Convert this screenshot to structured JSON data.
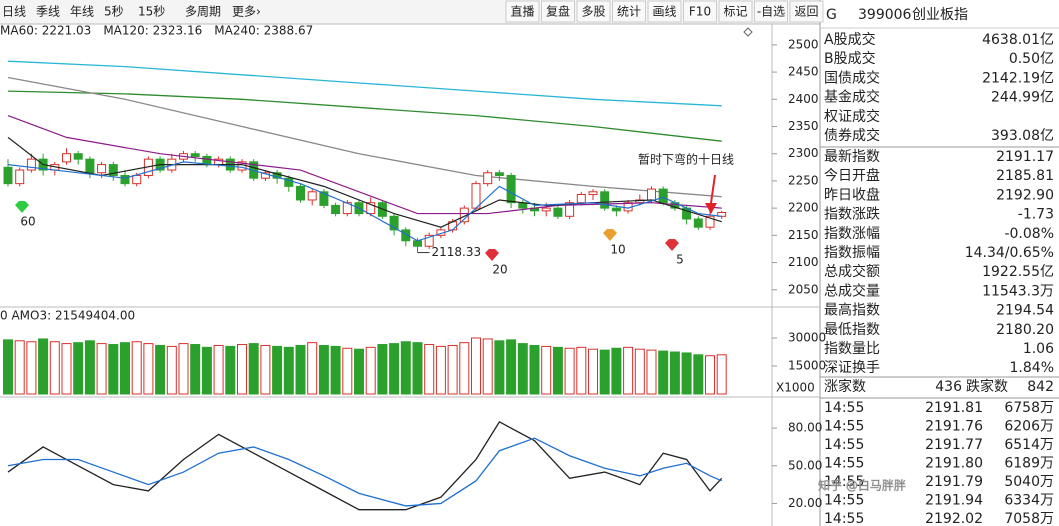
{
  "toolbar": {
    "periods": [
      "日线",
      "季线",
      "年线",
      "5秒",
      "15秒",
      "多周期",
      "更多›"
    ],
    "buttons": [
      "直播",
      "复盘",
      "多股",
      "统计",
      "画线",
      "F10",
      "标记",
      "-自选",
      "返回"
    ]
  },
  "chart_data": [
    {
      "type": "candlestick",
      "legend": [
        {
          "label": "MA60: 2221.03",
          "color": "#888888"
        },
        {
          "label": "MA120: 2323.16",
          "color": "#2e8b2e"
        },
        {
          "label": "MA240: 2388.67",
          "color": "#29b6d6"
        }
      ],
      "ylim": [
        2022,
        2531
      ],
      "yticks": [
        2050,
        2100,
        2150,
        2200,
        2250,
        2300,
        2350,
        2400,
        2450,
        2500
      ],
      "up_color": "#d9302b",
      "down_color": "#2ca02c",
      "candles": [
        [
          2275,
          2245,
          2290,
          2240
        ],
        [
          2245,
          2270,
          2275,
          2240
        ],
        [
          2270,
          2290,
          2300,
          2265
        ],
        [
          2290,
          2270,
          2300,
          2260
        ],
        [
          2270,
          2280,
          2285,
          2260
        ],
        [
          2285,
          2300,
          2310,
          2280
        ],
        [
          2300,
          2290,
          2305,
          2280
        ],
        [
          2290,
          2265,
          2295,
          2255
        ],
        [
          2265,
          2280,
          2285,
          2255
        ],
        [
          2280,
          2260,
          2285,
          2250
        ],
        [
          2260,
          2245,
          2270,
          2240
        ],
        [
          2245,
          2260,
          2265,
          2240
        ],
        [
          2260,
          2290,
          2295,
          2255
        ],
        [
          2290,
          2270,
          2295,
          2265
        ],
        [
          2270,
          2290,
          2300,
          2265
        ],
        [
          2290,
          2300,
          2305,
          2285
        ],
        [
          2300,
          2295,
          2305,
          2285
        ],
        [
          2295,
          2280,
          2300,
          2275
        ],
        [
          2280,
          2290,
          2295,
          2275
        ],
        [
          2290,
          2270,
          2295,
          2265
        ],
        [
          2270,
          2285,
          2290,
          2265
        ],
        [
          2285,
          2255,
          2290,
          2250
        ],
        [
          2255,
          2265,
          2270,
          2250
        ],
        [
          2265,
          2255,
          2270,
          2245
        ],
        [
          2255,
          2240,
          2260,
          2230
        ],
        [
          2240,
          2215,
          2245,
          2210
        ],
        [
          2215,
          2230,
          2235,
          2205
        ],
        [
          2230,
          2205,
          2235,
          2200
        ],
        [
          2205,
          2190,
          2210,
          2185
        ],
        [
          2190,
          2210,
          2215,
          2185
        ],
        [
          2210,
          2190,
          2215,
          2185
        ],
        [
          2190,
          2210,
          2220,
          2185
        ],
        [
          2210,
          2185,
          2215,
          2180
        ],
        [
          2185,
          2160,
          2190,
          2150
        ],
        [
          2160,
          2140,
          2165,
          2130
        ],
        [
          2140,
          2130,
          2145,
          2118.33
        ],
        [
          2130,
          2150,
          2155,
          2125
        ],
        [
          2150,
          2160,
          2165,
          2145
        ],
        [
          2160,
          2175,
          2180,
          2155
        ],
        [
          2175,
          2200,
          2205,
          2170
        ],
        [
          2200,
          2245,
          2250,
          2195
        ],
        [
          2245,
          2265,
          2270,
          2240
        ],
        [
          2265,
          2260,
          2270,
          2250
        ],
        [
          2260,
          2210,
          2265,
          2200
        ],
        [
          2210,
          2200,
          2215,
          2190
        ],
        [
          2200,
          2195,
          2210,
          2185
        ],
        [
          2195,
          2200,
          2210,
          2185
        ],
        [
          2200,
          2185,
          2205,
          2180
        ],
        [
          2185,
          2210,
          2215,
          2180
        ],
        [
          2210,
          2225,
          2230,
          2205
        ],
        [
          2225,
          2230,
          2235,
          2215
        ],
        [
          2230,
          2200,
          2235,
          2195
        ],
        [
          2200,
          2195,
          2205,
          2185
        ],
        [
          2195,
          2210,
          2215,
          2190
        ],
        [
          2210,
          2215,
          2225,
          2205
        ],
        [
          2215,
          2235,
          2240,
          2210
        ],
        [
          2235,
          2210,
          2240,
          2205
        ],
        [
          2210,
          2200,
          2215,
          2195
        ],
        [
          2200,
          2180,
          2205,
          2170
        ],
        [
          2180,
          2165,
          2185,
          2160
        ],
        [
          2165,
          2185,
          2195,
          2160
        ],
        [
          2185,
          2192,
          2195,
          2180
        ]
      ],
      "ma_lines": [
        {
          "color": "#29b6d6",
          "x": [
            0,
            10,
            20,
            30,
            40,
            50,
            61
          ],
          "values": [
            2470,
            2460,
            2445,
            2430,
            2415,
            2400,
            2388
          ]
        },
        {
          "color": "#2e8b2e",
          "x": [
            0,
            10,
            20,
            30,
            40,
            50,
            61
          ],
          "values": [
            2415,
            2410,
            2400,
            2385,
            2370,
            2350,
            2323
          ]
        },
        {
          "color": "#888888",
          "x": [
            0,
            10,
            20,
            30,
            40,
            50,
            61
          ],
          "values": [
            2440,
            2400,
            2350,
            2300,
            2260,
            2240,
            2221
          ]
        },
        {
          "color": "#8b1a8b",
          "x": [
            0,
            5,
            13,
            25,
            35,
            41,
            47,
            55,
            61
          ],
          "values": [
            2370,
            2330,
            2300,
            2270,
            2190,
            2190,
            2205,
            2210,
            2200
          ]
        },
        {
          "color": "#222222",
          "x": [
            0,
            3,
            8,
            13,
            20,
            27,
            33,
            37,
            42,
            46,
            50,
            55,
            58,
            61
          ],
          "values": [
            2330,
            2280,
            2260,
            2280,
            2280,
            2240,
            2190,
            2165,
            2215,
            2205,
            2210,
            2215,
            2195,
            2175
          ]
        },
        {
          "color": "#1f6fd1",
          "x": [
            0,
            4,
            10,
            15,
            20,
            25,
            30,
            35,
            38,
            42,
            45,
            50,
            53,
            56,
            59,
            61
          ],
          "values": [
            2280,
            2270,
            2255,
            2285,
            2275,
            2245,
            2200,
            2140,
            2160,
            2240,
            2205,
            2210,
            2200,
            2220,
            2190,
            2185
          ]
        }
      ],
      "low_label": "2118.33",
      "markers": [
        {
          "label": "60",
          "color": "#2ecc40"
        },
        {
          "label": "20",
          "color": "#e0303a"
        },
        {
          "label": "10",
          "color": "#e8a030"
        },
        {
          "label": "5",
          "color": "#e0303a"
        }
      ],
      "annotation": "暂时下弯的十日线"
    },
    {
      "type": "bar",
      "title": "0  AMO3: 21549404.00",
      "ylim": [
        0,
        45000
      ],
      "yticks": [
        30000,
        15000
      ],
      "unit": "X1000",
      "values": [
        29000,
        28500,
        28000,
        29500,
        28000,
        27000,
        27500,
        28500,
        27000,
        26500,
        27500,
        28000,
        27000,
        26000,
        25500,
        27000,
        26500,
        25000,
        26000,
        25500,
        26500,
        27000,
        26000,
        25500,
        25000,
        26000,
        27500,
        26000,
        25500,
        24500,
        24000,
        25000,
        26500,
        27000,
        28000,
        27500,
        26500,
        25500,
        26000,
        27500,
        30000,
        29500,
        28500,
        29000,
        27000,
        26000,
        25500,
        25000,
        24500,
        25000,
        24000,
        23500,
        24500,
        25000,
        24000,
        23500,
        23000,
        22500,
        22000,
        21000,
        20500,
        21000
      ]
    },
    {
      "type": "line",
      "ylim": [
        6,
        104
      ],
      "yticks": [
        {
          "value": 80,
          "label": "80.00"
        },
        {
          "value": 50,
          "label": "50.00"
        },
        {
          "value": 20,
          "label": "20.00"
        }
      ],
      "series": [
        {
          "color": "#222222",
          "x": [
            0,
            3,
            6,
            9,
            12,
            15,
            18,
            21,
            24,
            27,
            30,
            34,
            37,
            40,
            42,
            45,
            48,
            51,
            54,
            56,
            58,
            60,
            61
          ],
          "values": [
            45,
            65,
            50,
            35,
            30,
            55,
            75,
            60,
            45,
            30,
            15,
            15,
            25,
            55,
            85,
            70,
            40,
            45,
            35,
            60,
            55,
            30,
            40
          ]
        },
        {
          "color": "#1f6fd1",
          "x": [
            0,
            3,
            6,
            9,
            12,
            15,
            18,
            21,
            24,
            27,
            30,
            34,
            37,
            40,
            42,
            45,
            48,
            51,
            54,
            56,
            58,
            60,
            61
          ],
          "values": [
            50,
            55,
            55,
            45,
            35,
            45,
            60,
            65,
            55,
            42,
            28,
            18,
            20,
            38,
            62,
            72,
            58,
            48,
            42,
            48,
            52,
            42,
            38
          ]
        }
      ]
    }
  ],
  "quote": {
    "flag": "G",
    "code": "399006",
    "name": "创业板指",
    "turnover": [
      [
        "A股成交",
        "4638.01亿"
      ],
      [
        "B股成交",
        "0.50亿"
      ],
      [
        "国债成交",
        "2142.19亿"
      ],
      [
        "基金成交",
        "244.99亿"
      ],
      [
        "权证成交"
      ],
      [
        "债券成交",
        "393.08亿"
      ]
    ],
    "stats": [
      {
        "label": "最新指数",
        "value": "2191.17",
        "color": "#1a9a1a"
      },
      {
        "label": "今日开盘",
        "value": "2185.81",
        "color": "#1a9a1a"
      },
      {
        "label": "昨日收盘",
        "value": "2192.90",
        "color": "#000000"
      },
      {
        "label": "指数涨跌",
        "value": "-1.73",
        "color": "#1a9a1a"
      },
      {
        "label": "指数涨幅",
        "value": "-0.08%",
        "color": "#1a9a1a"
      },
      {
        "label": "指数振幅",
        "value": "14.34/0.65%",
        "color": "#000000"
      },
      {
        "label": "总成交额",
        "value": "1922.55亿",
        "color": "#000000"
      },
      {
        "label": "总成交量",
        "value": "11543.3万",
        "color": "#000000"
      },
      {
        "label": "最高指数",
        "value": "2194.54",
        "color": "#d9302b"
      },
      {
        "label": "最低指数",
        "value": "2180.20",
        "color": "#1a9a1a"
      },
      {
        "label": "指数量比",
        "value": "1.06",
        "color": "#d9302b"
      },
      {
        "label": "深证换手",
        "value": "1.84%",
        "color": "#000000"
      }
    ],
    "breadth": [
      "涨家数",
      "436",
      "跌家数",
      "842"
    ],
    "ticks": [
      [
        "14:55",
        "2191.81",
        "6758万"
      ],
      [
        "14:55",
        "2191.76",
        "6206万"
      ],
      [
        "14:55",
        "2191.77",
        "6514万"
      ],
      [
        "14:55",
        "2191.80",
        "6189万"
      ],
      [
        "14:55",
        "2191.79",
        "5040万"
      ],
      [
        "14:55",
        "2191.94",
        "6334万"
      ],
      [
        "14:55",
        "2192.02",
        "7058万"
      ]
    ],
    "tick_color": "#1a9a1a"
  },
  "watermark": "知乎 @白马胖胖"
}
